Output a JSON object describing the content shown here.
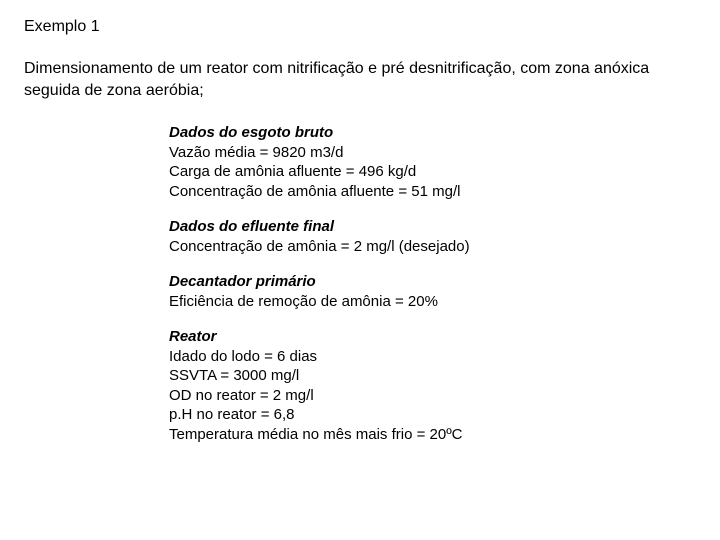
{
  "title": "Exemplo 1",
  "intro": "Dimensionamento de um reator com nitrificação e pré desnitrificação, com zona anóxica seguida de zona aeróbia;",
  "sections": [
    {
      "header": "Dados do esgoto bruto",
      "lines": [
        "Vazão média = 9820 m3/d",
        "Carga de amônia afluente = 496 kg/d",
        "Concentração de amônia afluente = 51 mg/l"
      ]
    },
    {
      "header": "Dados do efluente final",
      "lines": [
        "Concentração de amônia = 2 mg/l (desejado)"
      ]
    },
    {
      "header": "Decantador primário",
      "lines": [
        "Eficiência de remoção de amônia = 20%"
      ]
    },
    {
      "header": "Reator",
      "lines": [
        "Idado do lodo = 6 dias",
        "SSVTA = 3000 mg/l",
        "OD no reator = 2 mg/l",
        "p.H no reator = 6,8",
        "Temperatura média no mês mais frio = 20ºC"
      ]
    }
  ]
}
